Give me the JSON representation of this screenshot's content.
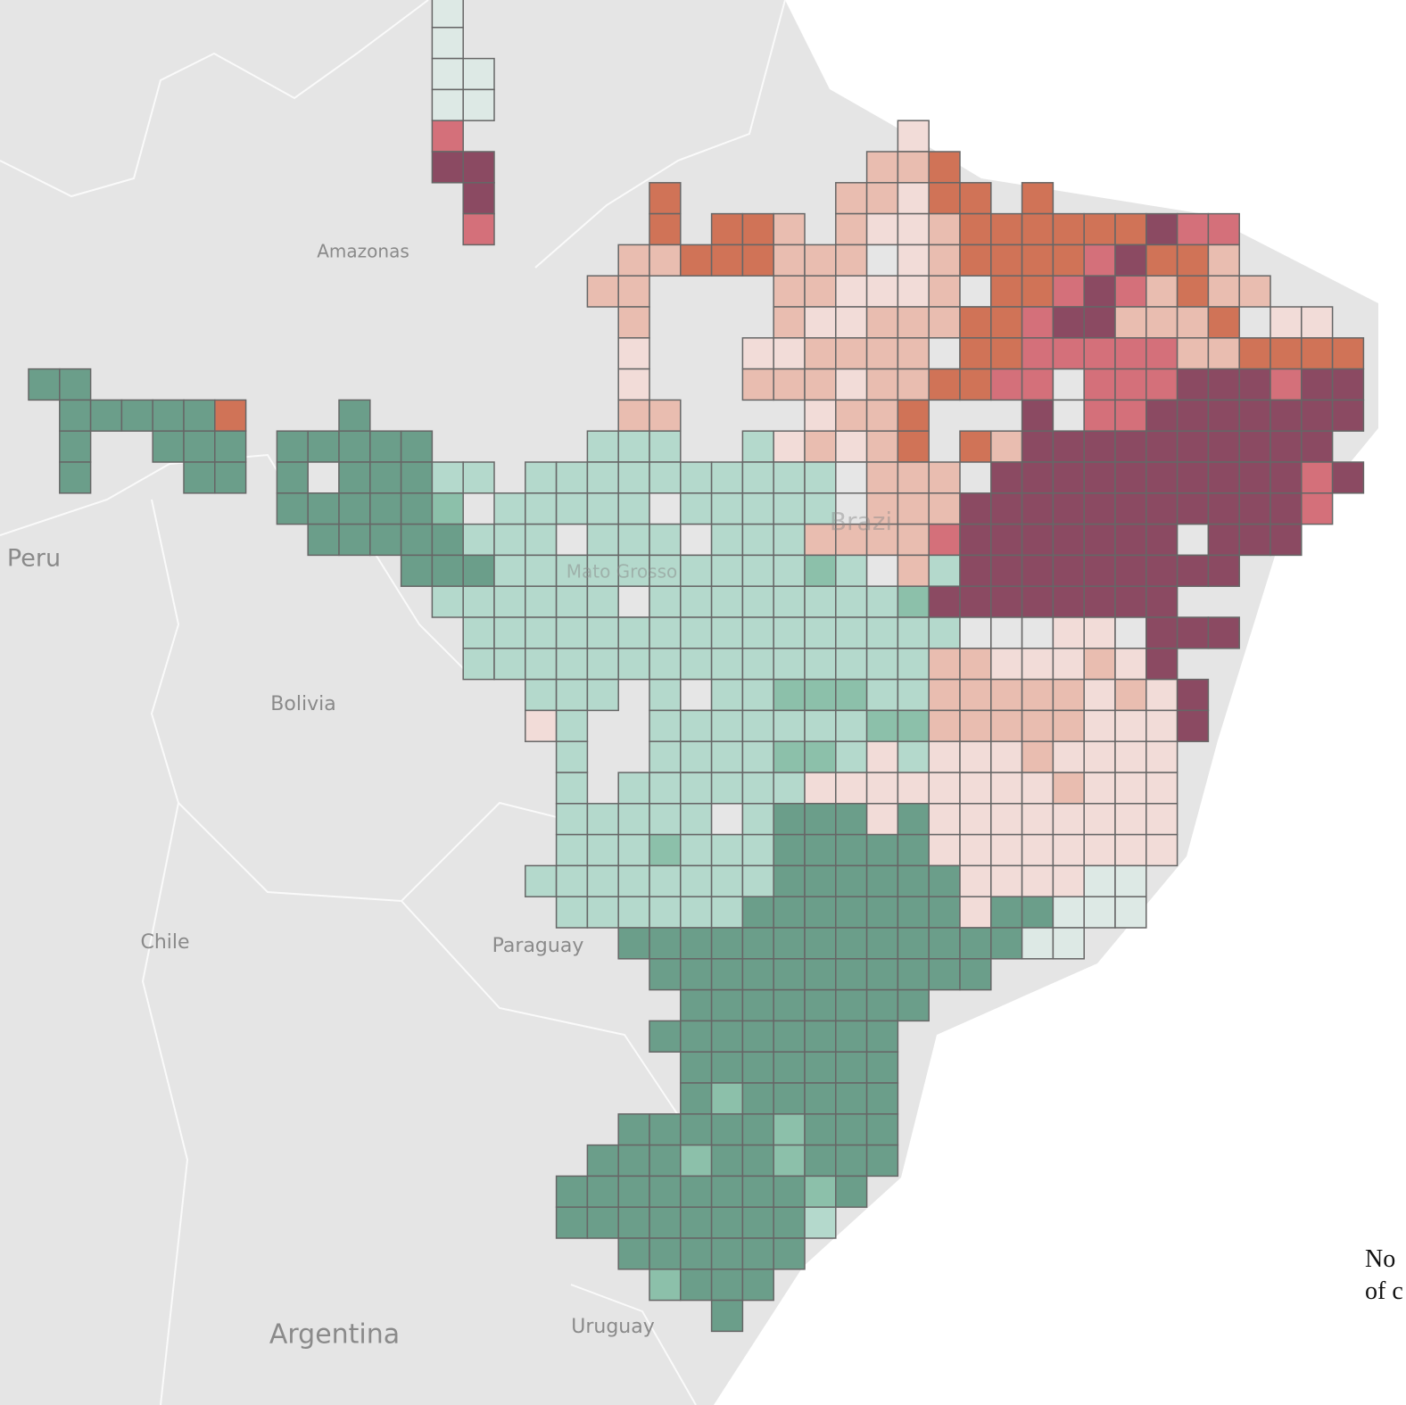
{
  "map": {
    "labels": {
      "amazonas": "Amazonas",
      "peru": "Peru",
      "bolivia": "Bolivia",
      "chile": "Chile",
      "paraguay": "Paraguay",
      "argentina": "Argentina",
      "uruguay": "Uruguay",
      "mato_grosso": "Mato Grosso",
      "brazil": "Brazi"
    },
    "note": [
      "No",
      "of c"
    ]
  }
}
